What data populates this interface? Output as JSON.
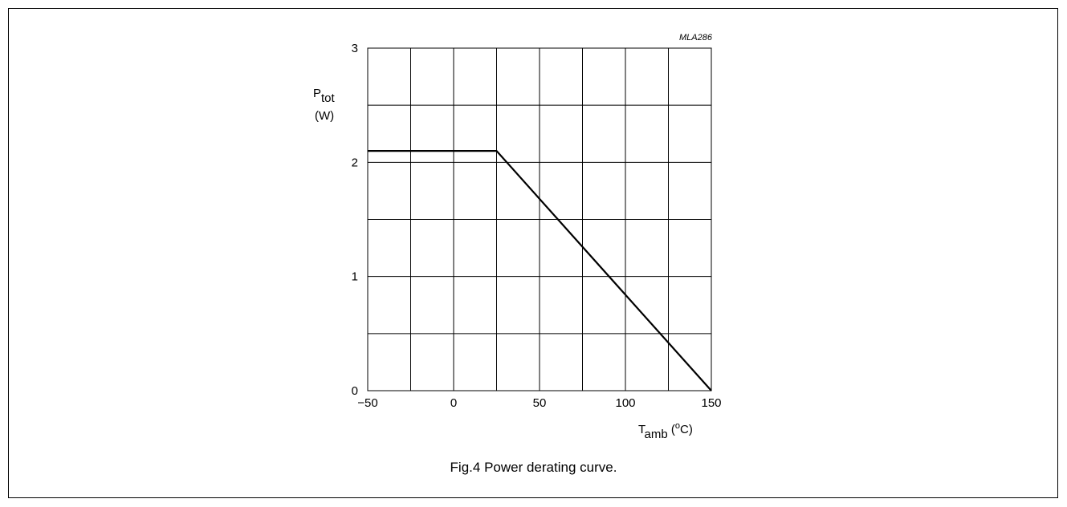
{
  "figure": {
    "code": "MLA286",
    "caption": "Fig.4  Power derating curve."
  },
  "chart_data": {
    "type": "line",
    "title": "",
    "xlabel": {
      "main": "T",
      "sub": "amb",
      "unit_open": " (",
      "unit_sup": "o",
      "unit_close": "C)"
    },
    "ylabel": {
      "main": "P",
      "sub": "tot",
      "unit": "(W)"
    },
    "xlim": [
      -50,
      150
    ],
    "ylim": [
      0,
      3
    ],
    "x_ticks": [
      -50,
      0,
      50,
      100,
      150
    ],
    "x_tick_labels": [
      "−50",
      "0",
      "50",
      "100",
      "150"
    ],
    "y_ticks": [
      0,
      1,
      2,
      3
    ],
    "y_tick_labels": [
      "0",
      "1",
      "2",
      "3"
    ],
    "x_grid": [
      -50,
      -25,
      0,
      25,
      50,
      75,
      100,
      125,
      150
    ],
    "y_grid": [
      0,
      0.5,
      1,
      1.5,
      2,
      2.5,
      3
    ],
    "grid": true,
    "series": [
      {
        "x": [
          -50,
          25,
          150
        ],
        "y": [
          2.1,
          2.1,
          0
        ]
      }
    ]
  }
}
